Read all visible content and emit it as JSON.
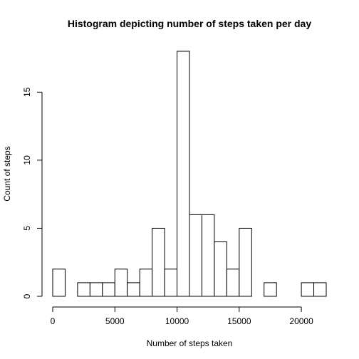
{
  "chart_data": {
    "type": "bar",
    "title": "Histogram depicting number of steps taken per day",
    "xlabel": "Number of steps taken",
    "ylabel": "Count of steps",
    "bin_width": 1000,
    "bins": [
      {
        "start": 0,
        "end": 1000,
        "count": 2
      },
      {
        "start": 1000,
        "end": 2000,
        "count": 0
      },
      {
        "start": 2000,
        "end": 3000,
        "count": 1
      },
      {
        "start": 3000,
        "end": 4000,
        "count": 1
      },
      {
        "start": 4000,
        "end": 5000,
        "count": 1
      },
      {
        "start": 5000,
        "end": 6000,
        "count": 2
      },
      {
        "start": 6000,
        "end": 7000,
        "count": 1
      },
      {
        "start": 7000,
        "end": 8000,
        "count": 2
      },
      {
        "start": 8000,
        "end": 9000,
        "count": 5
      },
      {
        "start": 9000,
        "end": 10000,
        "count": 2
      },
      {
        "start": 10000,
        "end": 11000,
        "count": 18
      },
      {
        "start": 11000,
        "end": 12000,
        "count": 6
      },
      {
        "start": 12000,
        "end": 13000,
        "count": 6
      },
      {
        "start": 13000,
        "end": 14000,
        "count": 4
      },
      {
        "start": 14000,
        "end": 15000,
        "count": 2
      },
      {
        "start": 15000,
        "end": 16000,
        "count": 5
      },
      {
        "start": 16000,
        "end": 17000,
        "count": 0
      },
      {
        "start": 17000,
        "end": 18000,
        "count": 1
      },
      {
        "start": 18000,
        "end": 19000,
        "count": 0
      },
      {
        "start": 19000,
        "end": 20000,
        "count": 0
      },
      {
        "start": 20000,
        "end": 21000,
        "count": 1
      },
      {
        "start": 21000,
        "end": 22000,
        "count": 1
      }
    ],
    "xlim": [
      0,
      22000
    ],
    "ylim": [
      0,
      18
    ],
    "x_ticks": [
      0,
      5000,
      10000,
      15000,
      20000
    ],
    "x_tick_labels": [
      "0",
      "5000",
      "10000",
      "15000",
      "20000"
    ],
    "y_ticks": [
      0,
      5,
      10,
      15
    ],
    "y_tick_labels": [
      "0",
      "5",
      "10",
      "15"
    ],
    "grid": false,
    "legend": "none",
    "colors": {
      "bar_fill": "#ffffff",
      "bar_stroke": "#000000",
      "background": "#ffffff"
    }
  }
}
